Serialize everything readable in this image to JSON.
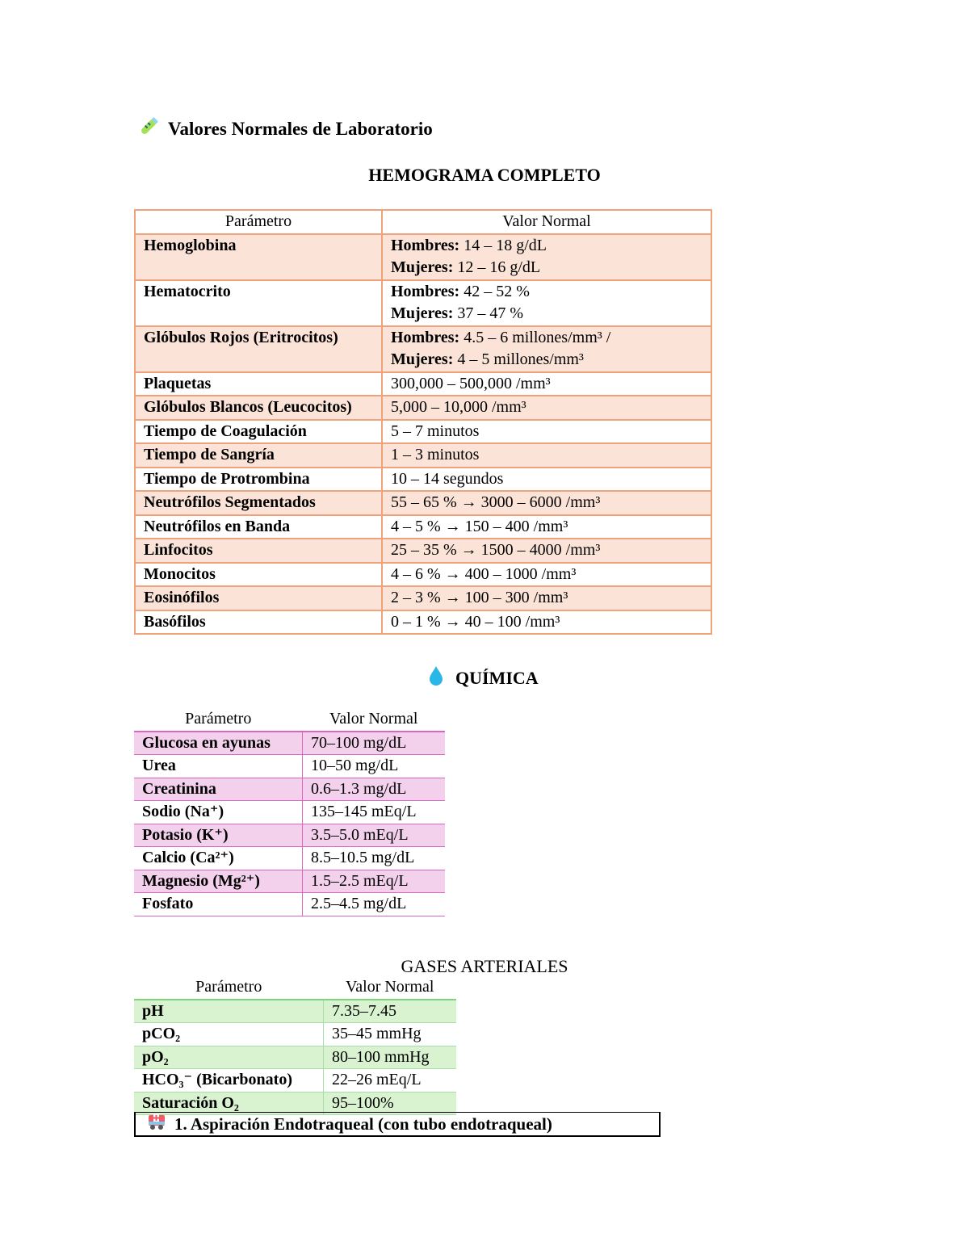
{
  "title": {
    "icon": "test-tube-icon",
    "text": "Valores Normales de Laboratorio"
  },
  "hemograma": {
    "heading": "HEMOGRAMA COMPLETO",
    "headers": [
      "Parámetro",
      "Valor Normal"
    ],
    "rows": [
      {
        "param": "Hemoglobina",
        "lines": [
          {
            "label": "Hombres:",
            "value": " 14 – 18 g/dL"
          },
          {
            "label": "Mujeres:",
            "value": " 12 – 16 g/dL"
          }
        ]
      },
      {
        "param": "Hematocrito",
        "lines": [
          {
            "label": "Hombres:",
            "value": " 42 – 52 %"
          },
          {
            "label": "Mujeres:",
            "value": " 37 – 47 %"
          }
        ]
      },
      {
        "param": "Glóbulos Rojos (Eritrocitos)",
        "lines": [
          {
            "label": "Hombres:",
            "value": " 4.5 – 6 millones/mm³ /"
          },
          {
            "label": "Mujeres:",
            "value": " 4 – 5 millones/mm³"
          }
        ]
      },
      {
        "param": "Plaquetas",
        "lines": [
          {
            "label": "",
            "value": "300,000 – 500,000 /mm³"
          }
        ]
      },
      {
        "param": "Glóbulos Blancos (Leucocitos)",
        "lines": [
          {
            "label": "",
            "value": "5,000 – 10,000 /mm³"
          }
        ]
      },
      {
        "param": "Tiempo de Coagulación",
        "lines": [
          {
            "label": "",
            "value": "5 – 7 minutos"
          }
        ]
      },
      {
        "param": "Tiempo de Sangría",
        "lines": [
          {
            "label": "",
            "value": "1 – 3 minutos"
          }
        ]
      },
      {
        "param": "Tiempo de Protrombina",
        "lines": [
          {
            "label": "",
            "value": "10 – 14 segundos"
          }
        ]
      },
      {
        "param": "Neutrófilos Segmentados",
        "lines": [
          {
            "label": "",
            "value": "55 – 65 % → 3000 – 6000 /mm³"
          }
        ]
      },
      {
        "param": "Neutrófilos en Banda",
        "lines": [
          {
            "label": "",
            "value": "4 – 5 % → 150 – 400 /mm³"
          }
        ]
      },
      {
        "param": "Linfocitos",
        "lines": [
          {
            "label": "",
            "value": "25 – 35 % → 1500 – 4000 /mm³"
          }
        ]
      },
      {
        "param": "Monocitos",
        "lines": [
          {
            "label": "",
            "value": "4 – 6 % → 400 – 1000 /mm³"
          }
        ]
      },
      {
        "param": "Eosinófilos",
        "lines": [
          {
            "label": "",
            "value": "2 – 3 % → 100 – 300 /mm³"
          }
        ]
      },
      {
        "param": "Basófilos",
        "lines": [
          {
            "label": "",
            "value": "0 – 1 % → 40 – 100 /mm³"
          }
        ]
      }
    ]
  },
  "quimica": {
    "icon": "droplet-icon",
    "heading": "QUÍMICA",
    "headers": [
      "Parámetro",
      "Valor Normal"
    ],
    "rows": [
      {
        "param": "Glucosa en ayunas",
        "value": "70–100 mg/dL"
      },
      {
        "param": "Urea",
        "value": "10–50 mg/dL"
      },
      {
        "param": "Creatinina",
        "value": "0.6–1.3 mg/dL"
      },
      {
        "param": "Sodio (Na⁺)",
        "value": "135–145 mEq/L"
      },
      {
        "param": "Potasio (K⁺)",
        "value": "3.5–5.0 mEq/L"
      },
      {
        "param": "Calcio (Ca²⁺)",
        "value": "8.5–10.5 mg/dL"
      },
      {
        "param": "Magnesio (Mg²⁺)",
        "value": "1.5–2.5 mEq/L"
      },
      {
        "param": "Fosfato",
        "value": "2.5–4.5 mg/dL"
      }
    ]
  },
  "gases": {
    "heading": "GASES ARTERIALES",
    "headers": [
      "Parámetro",
      "Valor Normal"
    ],
    "rows": [
      {
        "param": "pH",
        "value": "7.35–7.45"
      },
      {
        "param": "pCO₂",
        "value": "35–45 mmHg"
      },
      {
        "param": "pO₂",
        "value": "80–100 mmHg"
      },
      {
        "param": "HCO₃⁻ (Bicarbonato)",
        "value": "22–26 mEq/L"
      },
      {
        "param": "Saturación O₂",
        "value": "95–100%"
      }
    ]
  },
  "section": {
    "icon": "ambulance-icon",
    "text": "1. Aspiración Endotraqueal (con tubo endotraqueal)"
  },
  "colors": {
    "hemo_border": "#f0a27c",
    "hemo_fill": "#fbe3d7",
    "quim_border": "#d966c0",
    "quim_fill": "#f3d0ec",
    "gas_border": "#a8dca8",
    "gas_fill": "#d9f2d0"
  }
}
